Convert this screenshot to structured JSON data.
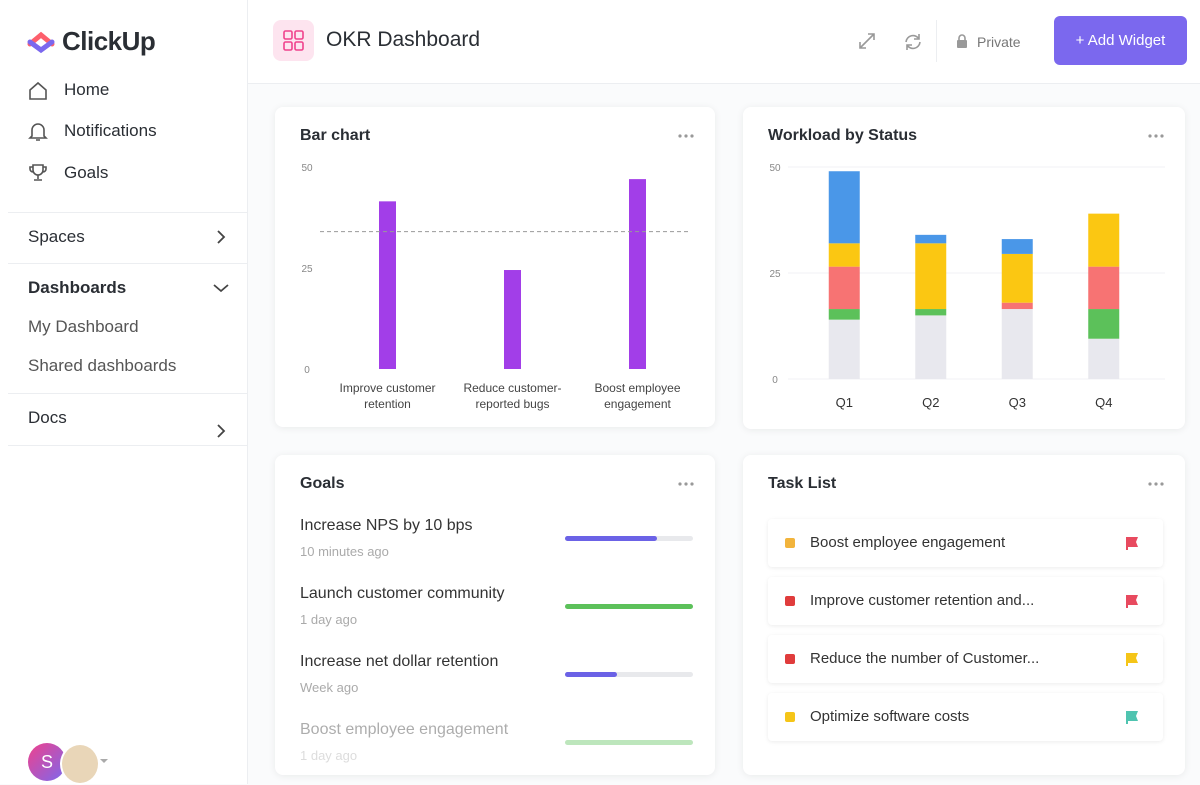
{
  "sidebar": {
    "logo": "ClickUp",
    "nav": [
      "Home",
      "Notifications",
      "Goals"
    ],
    "spaces": "Spaces",
    "dashboards": {
      "label": "Dashboards",
      "items": [
        "My Dashboard",
        "Shared dashboards"
      ]
    },
    "docs": "Docs",
    "avatar": "S"
  },
  "header": {
    "title": "OKR Dashboard",
    "privacy": "Private",
    "button": "+ Add Widget"
  },
  "chart_data": [
    {
      "type": "bar",
      "title": "Bar chart",
      "categories": [
        "Improve customer retention",
        "Reduce customer-reported bugs",
        "Boost employee engagement"
      ],
      "values": [
        41.5,
        24.5,
        47
      ],
      "color": "#a23ee8",
      "reference_line": 34,
      "ylim": [
        0,
        50
      ],
      "yticks": [
        0,
        25,
        50
      ]
    },
    {
      "type": "stacked_bar",
      "title": "Workload by Status",
      "categories": [
        "Q1",
        "Q2",
        "Q3",
        "Q4"
      ],
      "series": [
        {
          "color": "#e8e8ee",
          "values": [
            14,
            15,
            16.5,
            9.5
          ]
        },
        {
          "color": "#5cc15a",
          "values": [
            2.5,
            1.5,
            0,
            7
          ]
        },
        {
          "color": "#f77373",
          "values": [
            10,
            0,
            1.5,
            10
          ]
        },
        {
          "color": "#fbc712",
          "values": [
            5.5,
            15.5,
            11.5,
            12.5
          ]
        },
        {
          "color": "#4a97e8",
          "values": [
            17,
            2,
            3.5,
            0
          ]
        }
      ],
      "ylim": [
        0,
        50
      ],
      "yticks": [
        0,
        25,
        50
      ],
      "grid": true
    }
  ],
  "goals": {
    "title": "Goals",
    "items": [
      {
        "name": "Increase NPS by 10 bps",
        "time": "10 minutes ago",
        "progress": 72,
        "color": "#6b62e6"
      },
      {
        "name": "Launch customer community",
        "time": "1 day ago",
        "progress": 100,
        "color": "#5cc15a"
      },
      {
        "name": "Increase net dollar retention",
        "time": "Week ago",
        "progress": 41,
        "color": "#6b62e6"
      },
      {
        "name": "Boost employee engagement",
        "time": "1 day ago",
        "progress": 100,
        "color": "#5cc15a"
      }
    ]
  },
  "tasks": {
    "title": "Task List",
    "items": [
      {
        "name": "Boost employee engagement",
        "status_color": "#f2b43c",
        "flag_color": "#e84a5f"
      },
      {
        "name": "Improve customer retention and...",
        "status_color": "#e03c3c",
        "flag_color": "#e84a5f"
      },
      {
        "name": "Reduce the number of Customer...",
        "status_color": "#e03c3c",
        "flag_color": "#f5c518"
      },
      {
        "name": "Optimize software costs",
        "status_color": "#f5c518",
        "flag_color": "#4fc4b0"
      }
    ]
  }
}
